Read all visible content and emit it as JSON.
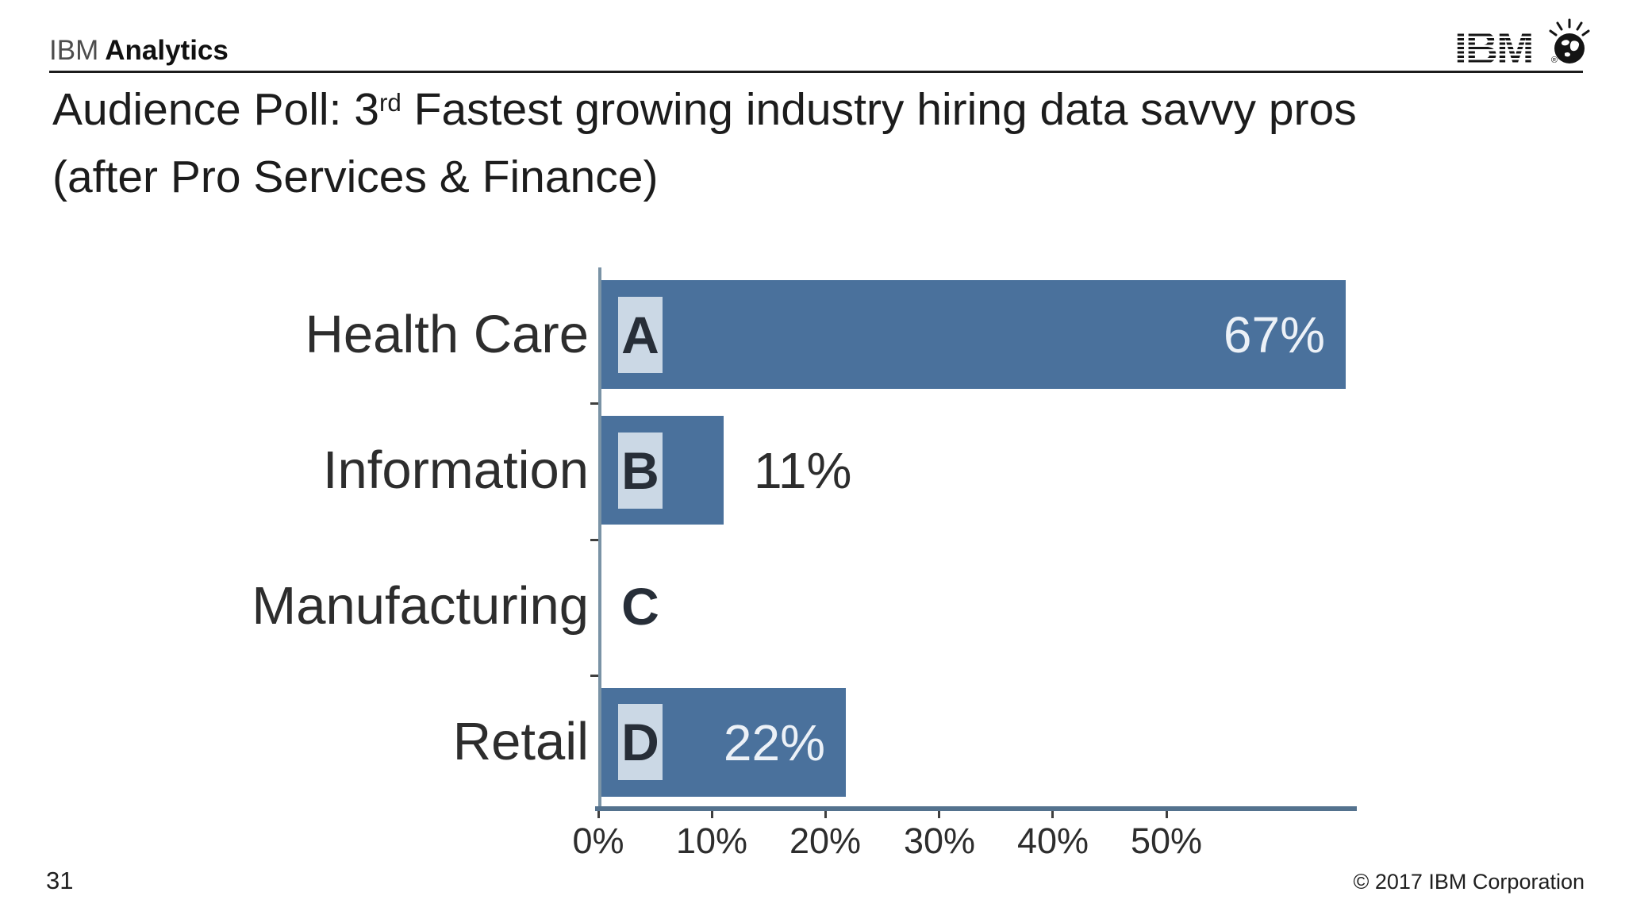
{
  "header": {
    "brand_regular": "IBM",
    "brand_bold": "Analytics",
    "logo_text": "IBM",
    "logo_registered": "®",
    "logo_icon": "smarter-planet-globe"
  },
  "title": {
    "line1_prefix": "Audience Poll: 3",
    "line1_sup": "rd",
    "line1_rest": " Fastest growing industry hiring data savvy pros",
    "line2": "(after Pro Services & Finance)"
  },
  "chart_data": {
    "type": "bar",
    "orientation": "horizontal",
    "title": "",
    "xlabel": "",
    "ylabel": "",
    "categories": [
      "Health Care",
      "Information",
      "Manufacturing",
      "Retail"
    ],
    "option_letters": [
      "A",
      "B",
      "C",
      "D"
    ],
    "values": [
      67,
      11,
      0,
      22
    ],
    "value_labels": [
      "67%",
      "11%",
      "",
      "22%"
    ],
    "value_label_placement": [
      "inside",
      "outside",
      "none",
      "inside"
    ],
    "x_ticks": [
      "0%",
      "10%",
      "20%",
      "30%",
      "40%",
      "50%"
    ],
    "x_tick_values": [
      0,
      10,
      20,
      30,
      40,
      50
    ],
    "xlim": [
      0,
      68
    ],
    "grid": false,
    "legend": false,
    "colors": {
      "bar": "#4A719C",
      "badge_bg": "#CBD8E5",
      "badge_text": "#272E38",
      "category_label": "#2D2D2D",
      "value_inside": "#ECF1F7",
      "value_outside": "#2D2D2D",
      "y_axis": "#7A93A6",
      "x_axis": "#54728E",
      "tick": "#3F3F3F"
    }
  },
  "footer": {
    "page_number": "31",
    "copyright": "© 2017 IBM Corporation"
  }
}
